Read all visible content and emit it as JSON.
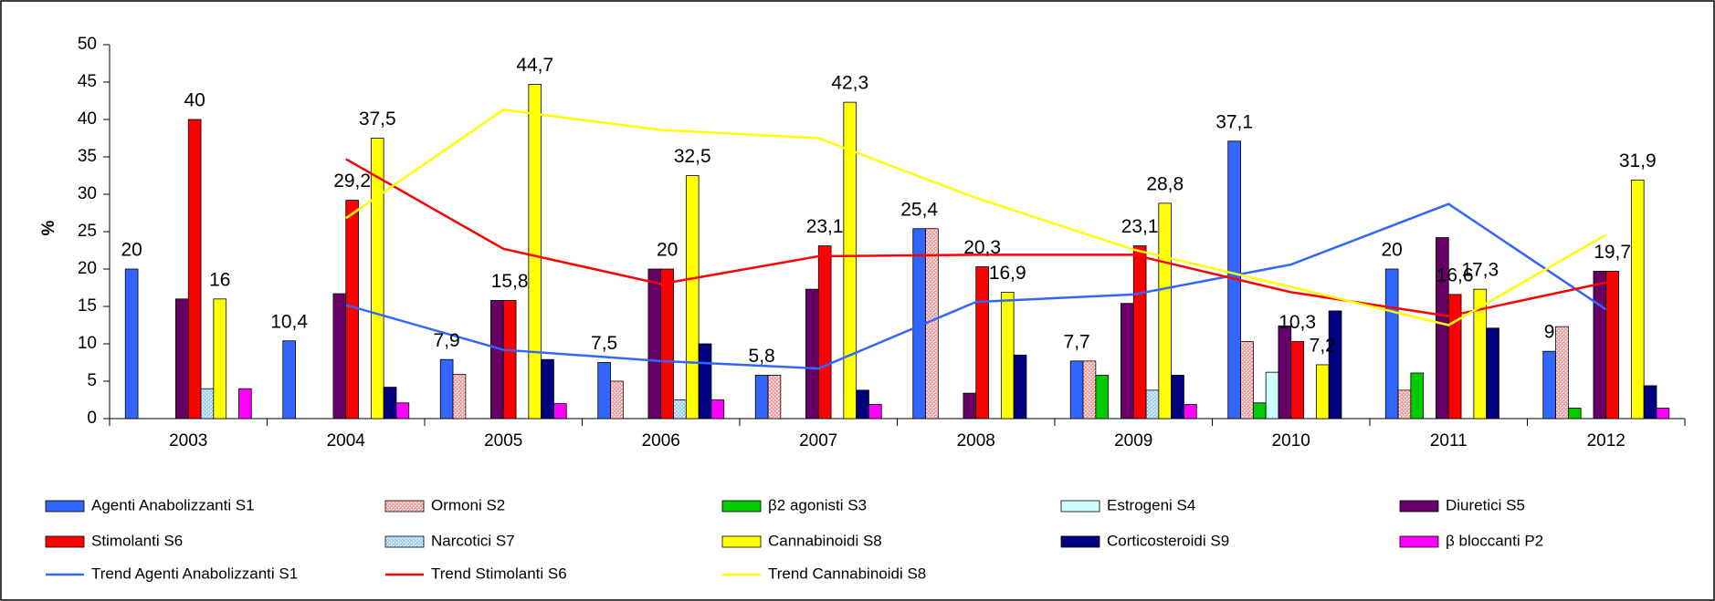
{
  "chart_data": {
    "type": "bar",
    "y_label": "%",
    "categories": [
      "2003",
      "2004",
      "2005",
      "2006",
      "2007",
      "2008",
      "2009",
      "2010",
      "2011",
      "2012"
    ],
    "ylim": [
      0,
      50
    ],
    "yticks": [
      0,
      5,
      10,
      15,
      20,
      25,
      30,
      35,
      40,
      45,
      50
    ],
    "series": [
      {
        "name": "Agenti Anabolizzanti S1",
        "color": "#3366ff",
        "values": [
          20,
          10.4,
          7.9,
          7.5,
          5.8,
          25.4,
          7.7,
          37.1,
          20,
          9
        ],
        "value_labels": [
          "20",
          "10,4",
          "7,9",
          "7,5",
          "5,8",
          "25,4",
          "7,7",
          "37,1",
          "20",
          "9"
        ]
      },
      {
        "name": "Ormoni S2",
        "color": "#ff9999",
        "pattern": "dots",
        "values": [
          0,
          0,
          5.9,
          5,
          5.8,
          25.4,
          7.7,
          10.3,
          3.8,
          12.3
        ]
      },
      {
        "name": "β2 agonisti S3",
        "color": "#00cc00",
        "values": [
          0,
          0,
          0,
          0,
          0,
          0,
          5.8,
          2.1,
          6.1,
          1.4
        ]
      },
      {
        "name": "Estrogeni S4",
        "color": "#ccffff",
        "values": [
          0,
          0,
          0,
          0,
          0,
          0,
          0,
          6.2,
          0,
          0
        ]
      },
      {
        "name": "Diuretici S5",
        "color": "#660066",
        "values": [
          16,
          16.7,
          15.8,
          20,
          17.3,
          3.4,
          15.4,
          12.4,
          24.2,
          19.7
        ]
      },
      {
        "name": "Stimolanti S6",
        "color": "#ff0000",
        "values": [
          40,
          29.2,
          15.8,
          20,
          23.1,
          20.3,
          23.1,
          10.3,
          16.6,
          19.7
        ],
        "value_labels": [
          "40",
          "29,2",
          "15,8",
          "20",
          "23,1",
          "20,3",
          "23,1",
          "10,3",
          "16,6",
          "19,7"
        ]
      },
      {
        "name": "Narcotici S7",
        "color": "#99ccff",
        "pattern": "dots",
        "values": [
          4,
          0,
          0,
          2.5,
          0,
          0,
          3.8,
          0,
          0,
          0
        ]
      },
      {
        "name": "Cannabinoidi S8",
        "color": "#ffff00",
        "values": [
          16,
          37.5,
          44.7,
          32.5,
          42.3,
          16.9,
          28.8,
          7.2,
          17.3,
          31.9
        ],
        "value_labels": [
          "16",
          "37,5",
          "44,7",
          "32,5",
          "42,3",
          "16,9",
          "28,8",
          "7,2",
          "17,3",
          "31,9"
        ]
      },
      {
        "name": "Corticosteroidi S9",
        "color": "#000080",
        "values": [
          0,
          4.2,
          7.9,
          10,
          3.8,
          8.5,
          5.8,
          14.4,
          12.1,
          4.4
        ]
      },
      {
        "name": "β bloccanti P2",
        "color": "#ff00ff",
        "values": [
          4,
          2.1,
          2,
          2.5,
          1.9,
          0,
          1.9,
          0,
          0,
          1.4
        ]
      },
      {
        "name": "Trend Agenti Anabolizzanti S1",
        "type": "line",
        "color": "#3366ff",
        "values": [
          null,
          15.2,
          9.2,
          7.7,
          6.7,
          15.6,
          16.6,
          20.6,
          28.7,
          14.6
        ]
      },
      {
        "name": "Trend Stimolanti S6",
        "type": "line",
        "color": "#ff0000",
        "values": [
          null,
          34.7,
          22.7,
          18,
          21.7,
          21.9,
          21.9,
          16.9,
          13.7,
          18.2
        ]
      },
      {
        "name": "Trend Cannabinoidi S8",
        "type": "line",
        "color": "#ffff00",
        "values": [
          null,
          26.8,
          41.3,
          38.6,
          37.5,
          29.5,
          22.6,
          17.6,
          12.5,
          24.6
        ]
      }
    ]
  }
}
